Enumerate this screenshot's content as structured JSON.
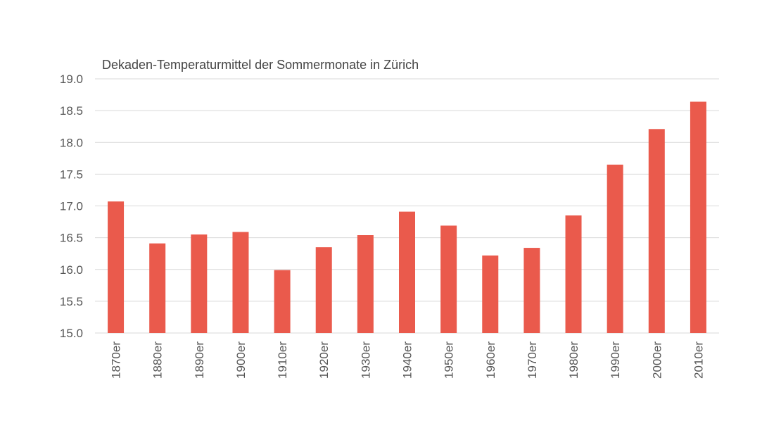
{
  "chart_data": {
    "type": "bar",
    "title": "Dekaden-Temperaturmittel der Sommermonate in Zürich",
    "xlabel": "",
    "ylabel": "",
    "ylim": [
      15.0,
      19.0
    ],
    "yticks": [
      "15.0",
      "15.5",
      "16.0",
      "16.5",
      "17.0",
      "17.5",
      "18.0",
      "18.5",
      "19.0"
    ],
    "grid": true,
    "categories": [
      "1870er",
      "1880er",
      "1890er",
      "1900er",
      "1910er",
      "1920er",
      "1930er",
      "1940er",
      "1950er",
      "1960er",
      "1970er",
      "1980er",
      "1990er",
      "2000er",
      "2010er"
    ],
    "values": [
      17.07,
      16.41,
      16.55,
      16.59,
      15.99,
      16.35,
      16.54,
      16.91,
      16.69,
      16.22,
      16.34,
      16.85,
      17.65,
      18.21,
      18.64
    ],
    "bar_color": "#ea5a4c",
    "grid_color": "#d9d9d9"
  }
}
